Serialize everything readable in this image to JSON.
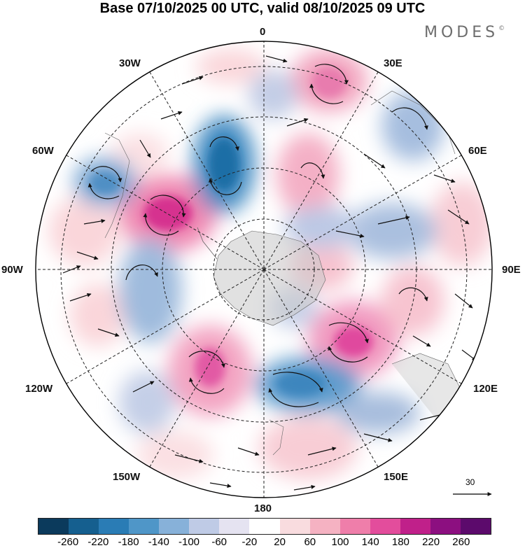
{
  "title": "Base 07/10/2025 00 UTC, valid 08/10/2025 09 UTC",
  "brand": {
    "name": "MODES",
    "mark": "©"
  },
  "longitude_labels": {
    "n": "0",
    "nne": "30E",
    "ene": "60E",
    "e": "90E",
    "ese": "120E",
    "sse": "150E",
    "s": "180",
    "ssw": "150W",
    "wsw": "120W",
    "w": "90W",
    "wnw": "60W",
    "nnw": "30W"
  },
  "vector_scale": {
    "label": "30"
  },
  "colorbar": {
    "colors": [
      "#0b3a5c",
      "#155f8f",
      "#2a7cb5",
      "#4f96c8",
      "#87b1d9",
      "#bfcbe6",
      "#e5e3f1",
      "#ffffff",
      "#f9dcdf",
      "#f5b2c2",
      "#ef7eaa",
      "#e34d9c",
      "#c0208a",
      "#8c0f80",
      "#5c0a6c"
    ],
    "ticks": [
      "-260",
      "-220",
      "-180",
      "-140",
      "-100",
      "-60",
      "-20",
      "20",
      "60",
      "100",
      "140",
      "180",
      "220",
      "260"
    ]
  }
}
